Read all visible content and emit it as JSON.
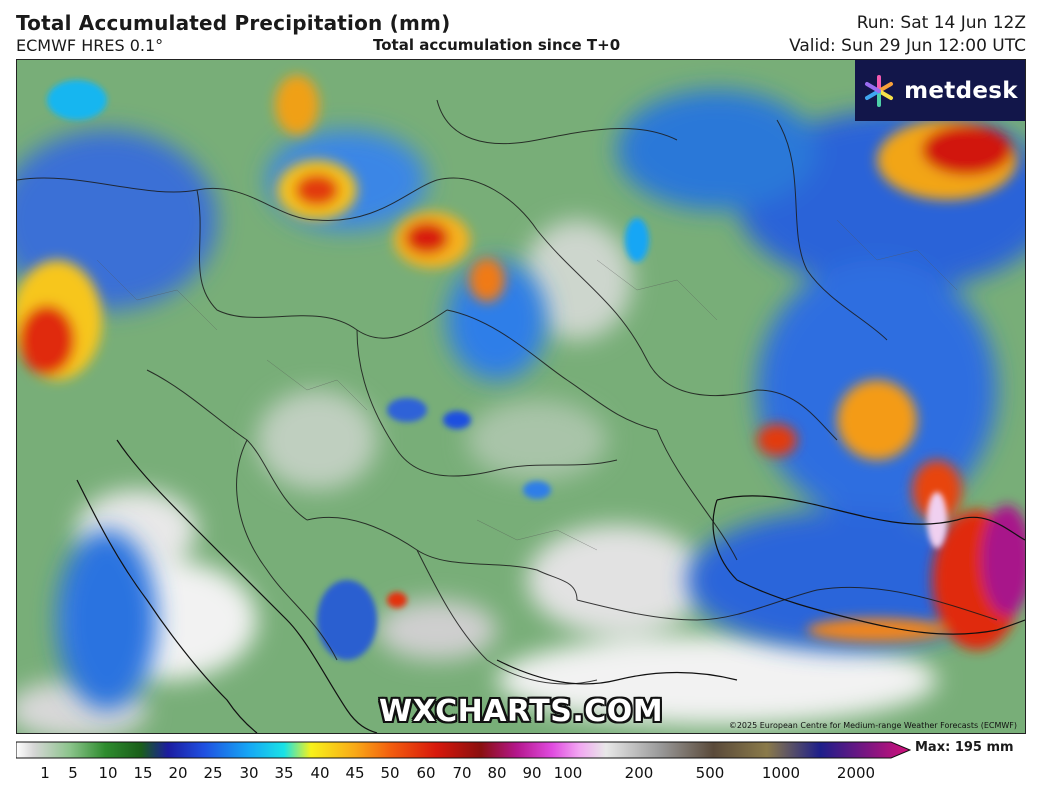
{
  "header": {
    "title": "Total Accumulated Precipitation (mm)",
    "model": "ECMWF HRES 0.1°",
    "subtitle": "Total accumulation since T+0",
    "run": "Run: Sat 14 Jun 12Z",
    "valid": "Valid: Sun 29 Jun 12:00 UTC"
  },
  "logo": {
    "text": "metdesk",
    "icon": "metdesk-flower-icon"
  },
  "watermark": "WXCHARTS.COM",
  "copyright": "©2025 European Centre for Medium-range Weather Forecasts (ECMWF)",
  "colorbar": {
    "ticks": [
      "1",
      "5",
      "10",
      "15",
      "20",
      "25",
      "30",
      "35",
      "40",
      "45",
      "50",
      "60",
      "70",
      "80",
      "90",
      "100",
      "200",
      "500",
      "1000",
      "2000"
    ],
    "max_label": "Max: 195 mm",
    "colors": [
      "#f2f2f2",
      "#c8c8c8",
      "#9cc69c",
      "#3c9a3c",
      "#1e6e1e",
      "#1e1ea0",
      "#1f4fe0",
      "#16a6f5",
      "#19e2e6",
      "#f8f21a",
      "#f9a817",
      "#f25c0e",
      "#d8180b",
      "#8a0f0f",
      "#b4168c",
      "#e04ce0",
      "#f2a6f2",
      "#dddddd",
      "#9a9a9a",
      "#5a4a3a",
      "#8a7a4a",
      "#1e1e8a",
      "#d2107a"
    ]
  }
}
